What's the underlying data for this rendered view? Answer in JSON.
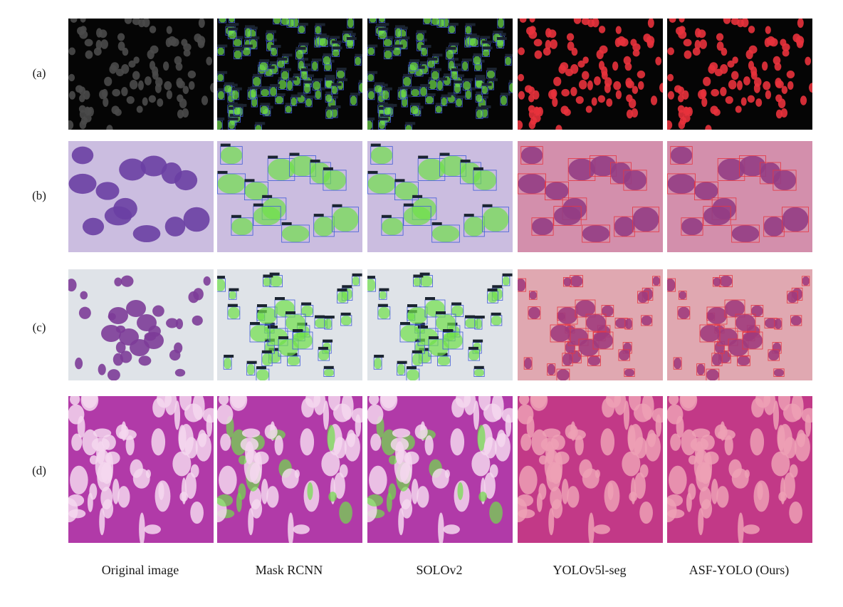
{
  "rows": [
    {
      "label": "(a)",
      "style": "fluor"
    },
    {
      "label": "(b)",
      "style": "purple"
    },
    {
      "label": "(c)",
      "style": "gray"
    },
    {
      "label": "(d)",
      "style": "tissue"
    }
  ],
  "columns": [
    {
      "label": "Original image",
      "overlay": "none"
    },
    {
      "label": "Mask RCNN",
      "overlay": "green"
    },
    {
      "label": "SOLOv2",
      "overlay": "green"
    },
    {
      "label": "YOLOv5l-seg",
      "overlay": "red"
    },
    {
      "label": "ASF-YOLO (Ours)",
      "overlay": "red"
    }
  ],
  "colors": {
    "fluor_bg": "#050505",
    "fluor_cell": "#4a4a4a",
    "purple_bg": "#cbbde0",
    "purple_cell": "#6a3fa3",
    "gray_bg": "#dfe3e8",
    "gray_cell": "#7d3c98",
    "tissue_bg": "#b13aa8",
    "tissue_cell": "#f4d7ee",
    "green_mask": "#6fe04a",
    "green_box": "#3f5bd8",
    "red_mask": "#e8323c",
    "red_tint": "#e23a4a",
    "label_tag": "#1b2430"
  }
}
